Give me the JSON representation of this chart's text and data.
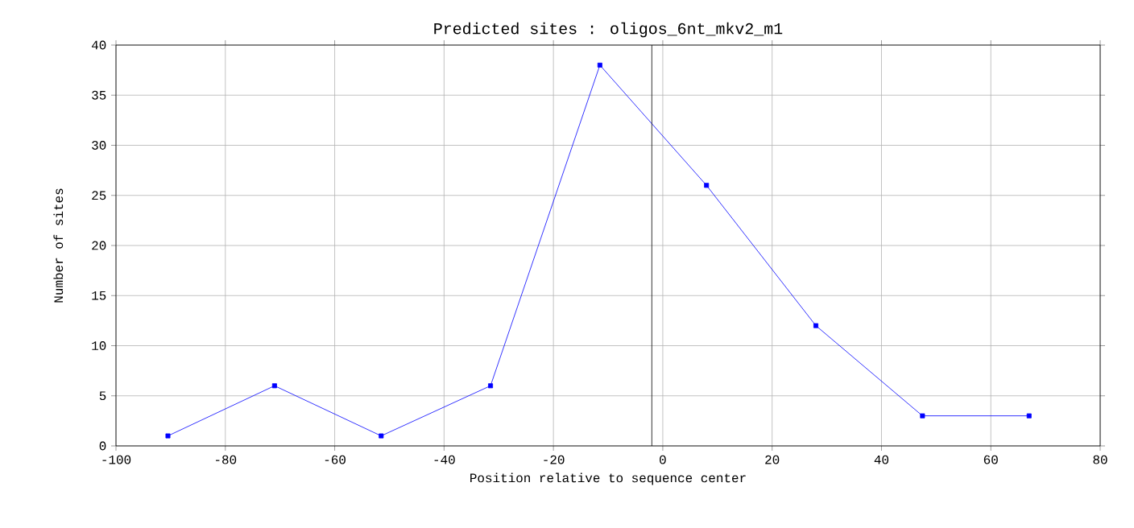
{
  "chart_data": {
    "type": "line",
    "title": "Predicted sites : oligos_6nt_mkv2_m1",
    "xlabel": "Position relative to sequence center",
    "ylabel": "Number of sites",
    "series": [
      {
        "color": "#0000ff",
        "x": [
          -90.5,
          -71,
          -51.5,
          -31.5,
          -11.5,
          8,
          28,
          47.5,
          67
        ],
        "values": [
          1,
          6,
          1,
          6,
          38,
          26,
          12,
          3,
          3
        ]
      }
    ],
    "xlim": [
      -100,
      80
    ],
    "xticks": [
      -100,
      -80,
      -60,
      -40,
      -20,
      0,
      20,
      40,
      60,
      80
    ],
    "ylim": [
      0,
      40
    ],
    "yticks": [
      0,
      5,
      10,
      15,
      20,
      25,
      30,
      35,
      40
    ],
    "grid": true,
    "marker": "square",
    "line_style": "solid",
    "ref_lines": [
      {
        "axis": "x",
        "value": -2,
        "color": "#000000"
      }
    ]
  }
}
